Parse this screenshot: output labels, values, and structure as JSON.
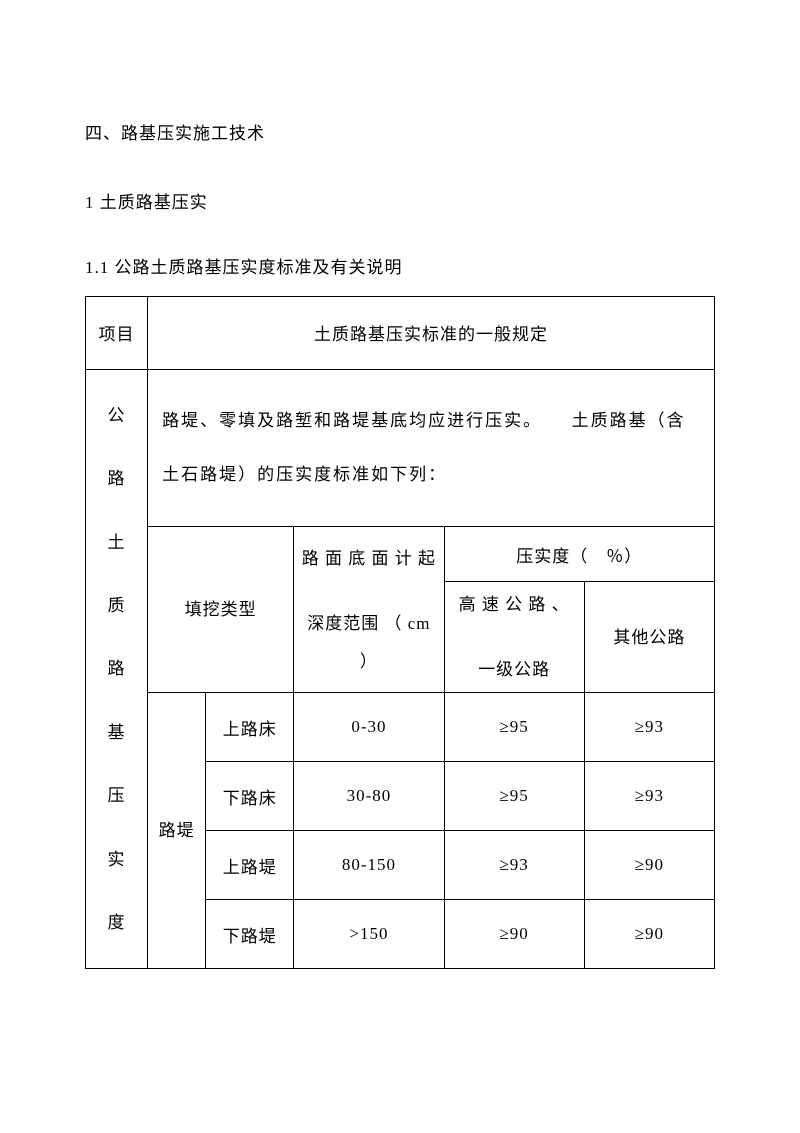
{
  "headings": {
    "h1": "四、路基压实施工技术",
    "h2": "1 土质路基压实",
    "h3": "1.1  公路土质路基压实度标准及有关说明"
  },
  "table": {
    "header": {
      "col1": "项目",
      "col2": "土质路基压实标准的一般规定"
    },
    "sideLabel": "公路土质路基压实度",
    "sideChars": [
      "公",
      "路",
      "土",
      "质",
      "路",
      "基",
      "压",
      "实",
      "度"
    ],
    "description": "路堤、零填及路堑和路堤基底均应进行压实。　　土质路基（含土石路堤）的压实度标准如下列：",
    "innerHeader": {
      "fillType": "填挖类型",
      "depthLine1": "路 面 底 面 计 起",
      "depthLine2": "深度范围 （ cm ）",
      "compaction": "压实度（　％）",
      "highwayLine1": "高 速 公 路 、",
      "highwayLine2": "一级公路",
      "other": "其他公路"
    },
    "groupLabel": "路堤",
    "groupChars": [
      "路",
      "堤"
    ],
    "rows": [
      {
        "name": "上路床",
        "depth": "0-30",
        "c1": "≥95",
        "c2": "≥93"
      },
      {
        "name": "下路床",
        "depth": "30-80",
        "c1": "≥95",
        "c2": "≥93"
      },
      {
        "name": "上路堤",
        "depth": "80-150",
        "c1": "≥93",
        "c2": "≥90"
      },
      {
        "name": "下路堤",
        "depth": ">150",
        "c1": "≥90",
        "c2": "≥90"
      }
    ]
  }
}
